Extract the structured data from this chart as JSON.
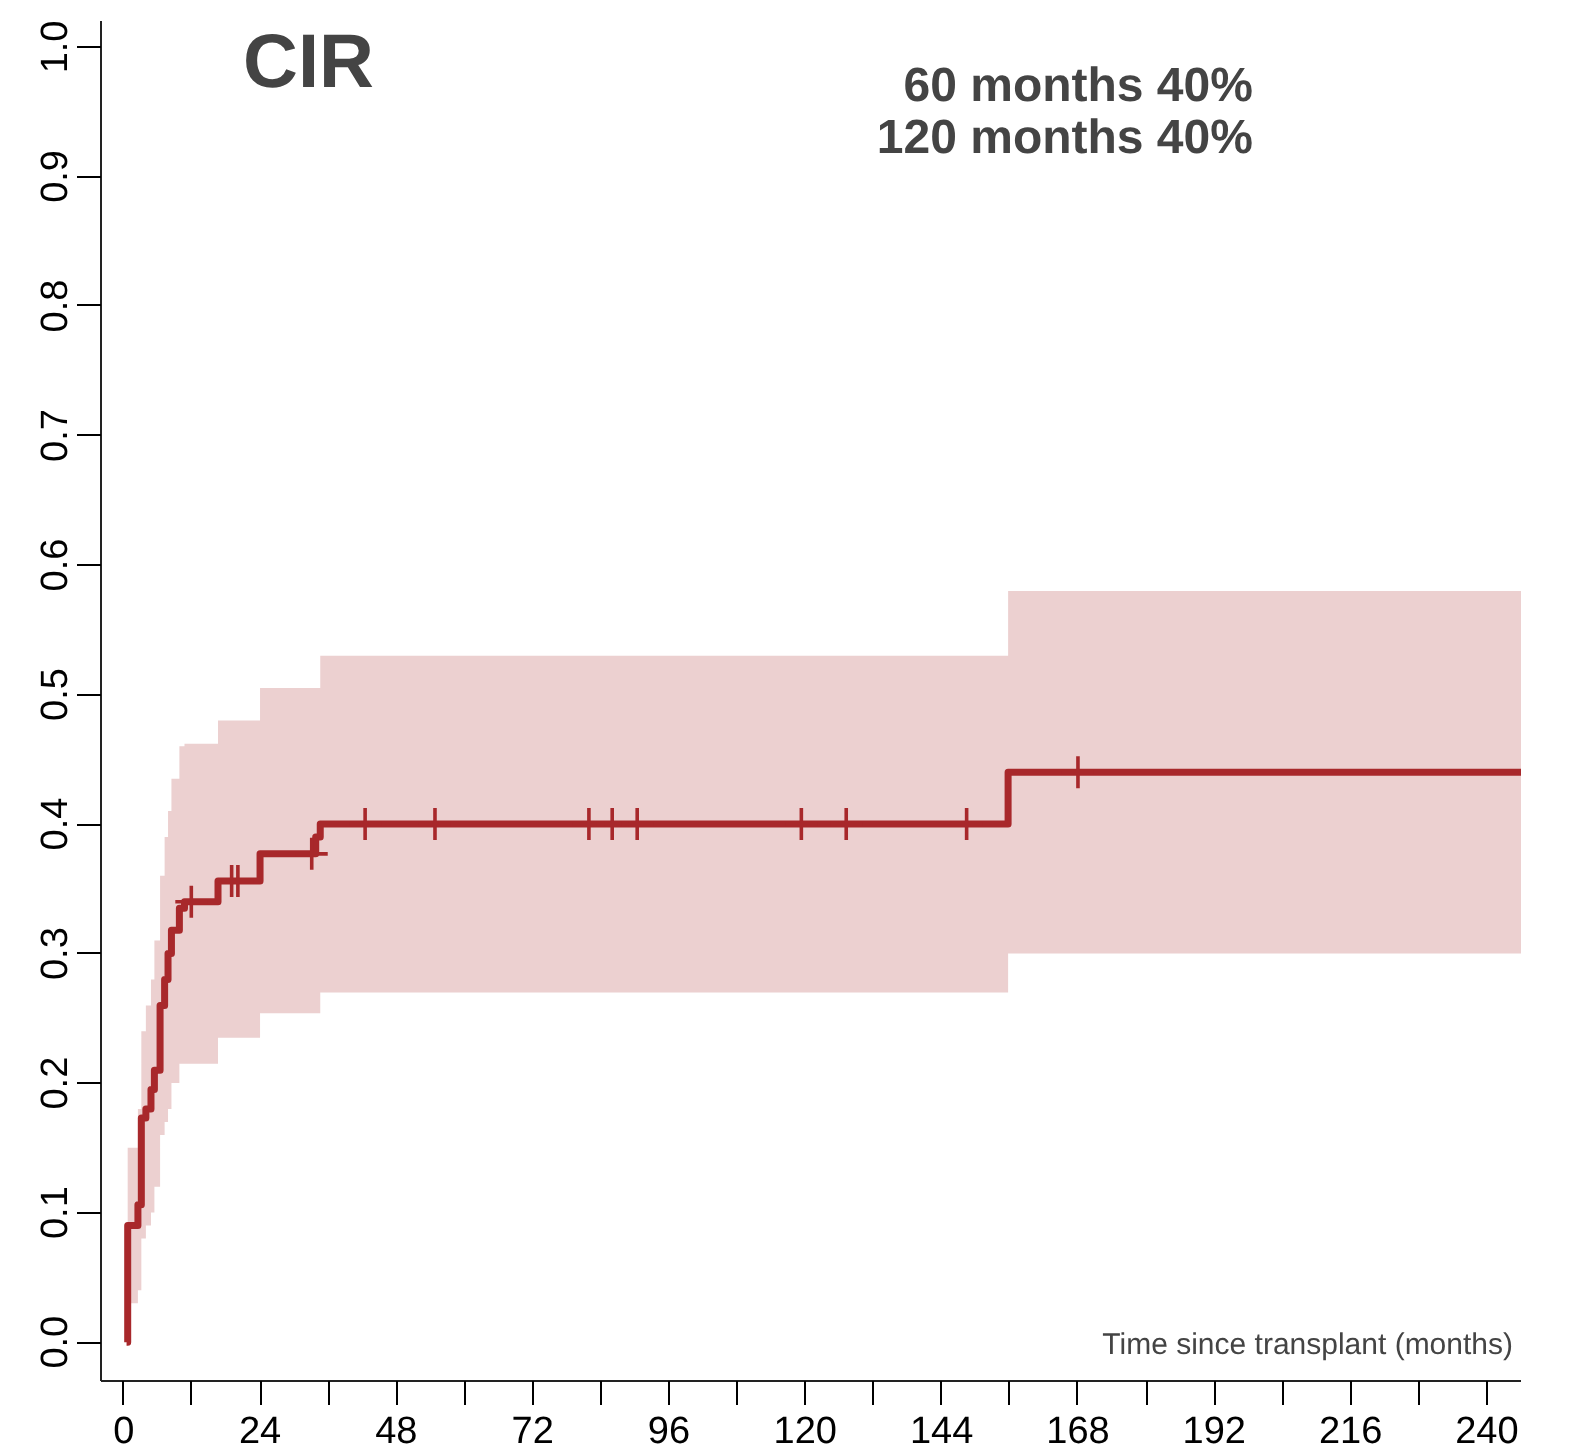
{
  "chart_data": {
    "type": "step",
    "title": "CIR",
    "xlabel": "Time since transplant (months)",
    "annotations": [
      "60 months   40%",
      "120 months   40%"
    ],
    "xlim": [
      -4,
      246
    ],
    "ylim": [
      -0.03,
      1.02
    ],
    "xticks": [
      0,
      {
        "value": 12,
        "label": null
      },
      24,
      {
        "value": 36,
        "label": null
      },
      48,
      {
        "value": 60,
        "label": null
      },
      72,
      {
        "value": 84,
        "label": null
      },
      96,
      {
        "value": 108,
        "label": null
      },
      120,
      {
        "value": 132,
        "label": null
      },
      144,
      {
        "value": 156,
        "label": null
      },
      168,
      {
        "value": 180,
        "label": null
      },
      192,
      {
        "value": 204,
        "label": null
      },
      216,
      {
        "value": 228,
        "label": null
      },
      240
    ],
    "yticks": [
      {
        "value": 0,
        "label": "0.0"
      },
      {
        "value": 0.1,
        "label": "0.1"
      },
      {
        "value": 0.2,
        "label": "0.2"
      },
      {
        "value": 0.3,
        "label": "0.3"
      },
      {
        "value": 0.4,
        "label": "0.4"
      },
      {
        "value": 0.5,
        "label": "0.5"
      },
      {
        "value": 0.6,
        "label": "0.6"
      },
      {
        "value": 0.7,
        "label": "0.7"
      },
      {
        "value": 0.8,
        "label": "0.8"
      },
      {
        "value": 0.9,
        "label": "0.9"
      },
      {
        "value": 1,
        "label": "1.0"
      }
    ],
    "grid": false,
    "series": [
      {
        "color": "#a8282b",
        "x": [
          0.5,
          0.7,
          2.5,
          3.1,
          3.9,
          4.8,
          5.4,
          6.4,
          7.2,
          7.8,
          8.4,
          9.8,
          10.7,
          16.6,
          24,
          33.8,
          34.6,
          155.7,
          246
        ],
        "values": [
          0,
          0.09,
          0.106,
          0.173,
          0.18,
          0.195,
          0.21,
          0.26,
          0.28,
          0.3,
          0.318,
          0.335,
          0.34,
          0.356,
          0.377,
          0.39,
          0.4,
          0.44,
          0.44
        ],
        "lower": [
          0,
          0.03,
          0.04,
          0.08,
          0.09,
          0.1,
          0.12,
          0.16,
          0.17,
          0.18,
          0.2,
          0.215,
          0.215,
          0.235,
          0.254,
          0.254,
          0.27,
          0.3,
          0.3
        ],
        "upper": [
          0,
          0.15,
          0.18,
          0.24,
          0.26,
          0.28,
          0.31,
          0.36,
          0.39,
          0.41,
          0.435,
          0.46,
          0.462,
          0.48,
          0.505,
          0.505,
          0.53,
          0.58,
          0.58
        ]
      },
      {
        "type": "scatter",
        "marker": "cross",
        "color": "#a8282b",
        "x": [
          11.9,
          19,
          20.1,
          33.1,
          42.5,
          54.8,
          81.9,
          86,
          90.4,
          119.3,
          127.2,
          148.4,
          168
        ],
        "values": [
          0.34,
          0.356,
          0.356,
          0.377,
          0.4,
          0.4,
          0.4,
          0.4,
          0.4,
          0.4,
          0.4,
          0.4,
          0.44
        ]
      }
    ]
  }
}
